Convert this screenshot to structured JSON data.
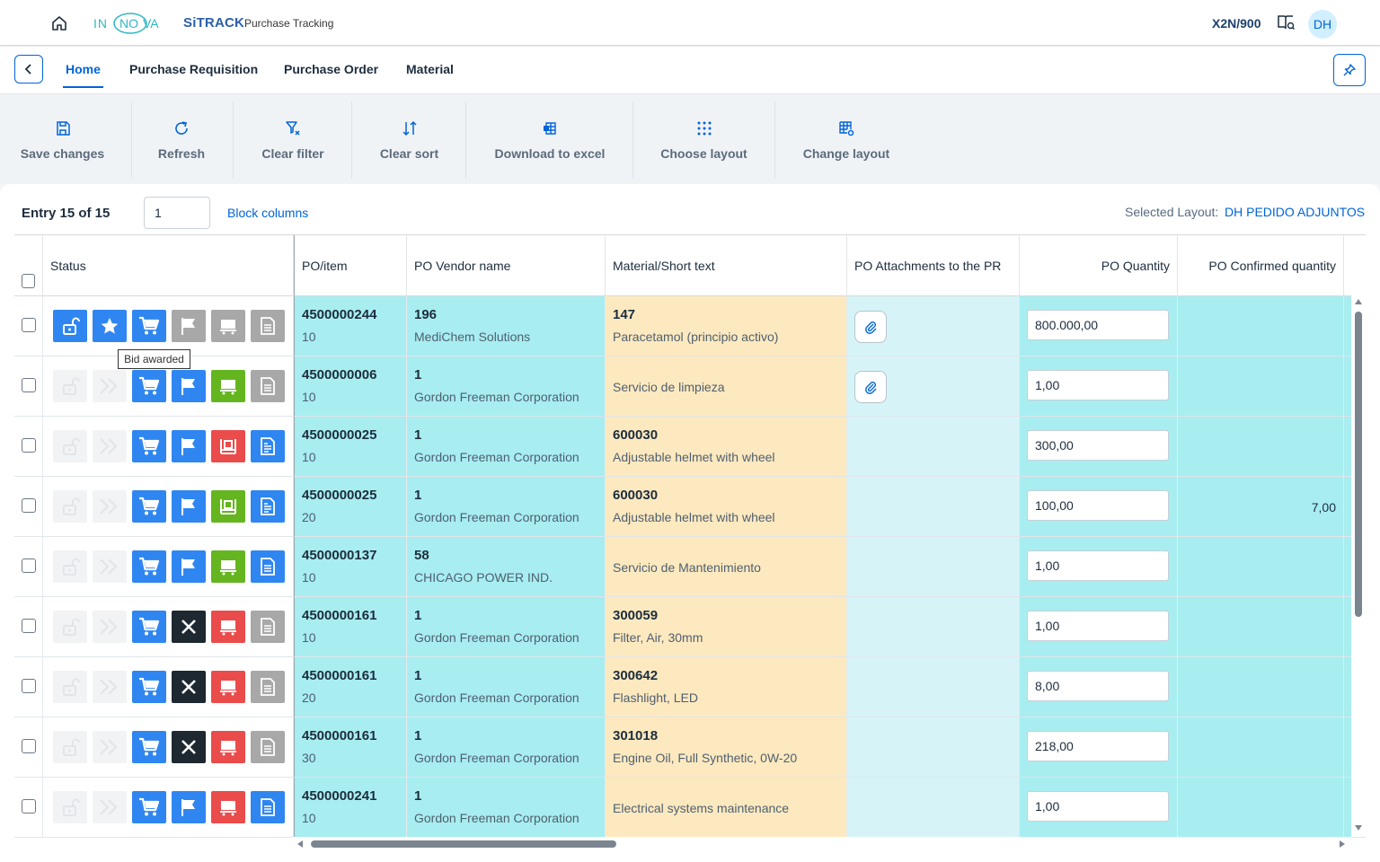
{
  "shell": {
    "app_name": "SiTRACK",
    "app_subtitle": "Purchase Tracking",
    "logo_text": "INNOVA",
    "system": "X2N/900",
    "avatar": "DH",
    "home_icon": "home-icon",
    "help_icon": "help-icon"
  },
  "nav": {
    "tabs": [
      {
        "label": "Home",
        "active": true
      },
      {
        "label": "Purchase Requisition"
      },
      {
        "label": "Purchase Order"
      },
      {
        "label": "Material"
      }
    ],
    "back_icon": "chevron-left-icon",
    "pin_icon": "pin-icon"
  },
  "toolbar": {
    "items": [
      {
        "label": "Save changes",
        "icon": "save-icon"
      },
      {
        "label": "Refresh",
        "icon": "refresh-icon"
      },
      {
        "label": "Clear filter",
        "icon": "clear-filter-icon"
      },
      {
        "label": "Clear sort",
        "icon": "sort-icon"
      },
      {
        "label": "Download to excel",
        "icon": "excel-icon"
      },
      {
        "label": "Choose layout",
        "icon": "grid-dots-icon"
      },
      {
        "label": "Change layout",
        "icon": "table-settings-icon"
      }
    ]
  },
  "panel": {
    "entry_label": "Entry 15 of 15",
    "entry_value": "1",
    "block_columns": "Block columns",
    "selected_layout_label": "Selected Layout:",
    "selected_layout_value": "DH PEDIDO ADJUNTOS"
  },
  "table": {
    "headers": [
      "Status",
      "PO/item",
      "PO Vendor name",
      "Material/Short text",
      "PO Attachments to the PR",
      "PO Quantity",
      "PO Confirmed quantity"
    ],
    "tooltip": "Bid awarded",
    "rows": [
      {
        "po": "4500000244",
        "item": "10",
        "vendor_id": "196",
        "vendor": "MediChem Solutions",
        "mat_id": "147",
        "mat_text": "Paracetamol (principio activo)",
        "attach": true,
        "qty": "800.000,00",
        "confirmed": "",
        "status": [
          "blue:unlock",
          "blue:star",
          "blue:cart",
          "grey:flag",
          "grey:truck",
          "grey:doc"
        ]
      },
      {
        "po": "4500000006",
        "item": "10",
        "vendor_id": "1",
        "vendor": "Gordon Freeman Corporation",
        "mat_id": "",
        "mat_text": "Servicio de limpieza",
        "attach": true,
        "qty": "1,00",
        "confirmed": "",
        "status": [
          "ghost:unlock",
          "ghost:forward",
          "blue:cart",
          "blue:flag",
          "green:truck",
          "grey:doc"
        ]
      },
      {
        "po": "4500000025",
        "item": "10",
        "vendor_id": "1",
        "vendor": "Gordon Freeman Corporation",
        "mat_id": "600030",
        "mat_text": "Adjustable helmet with wheel",
        "attach": false,
        "qty": "300,00",
        "confirmed": "",
        "status": [
          "ghost:unlock",
          "ghost:forward",
          "blue:cart",
          "blue:flag",
          "red:dock",
          "blue:invoice"
        ]
      },
      {
        "po": "4500000025",
        "item": "20",
        "vendor_id": "1",
        "vendor": "Gordon Freeman Corporation",
        "mat_id": "600030",
        "mat_text": "Adjustable helmet with wheel",
        "attach": false,
        "qty": "100,00",
        "confirmed": "7,00",
        "status": [
          "ghost:unlock",
          "ghost:forward",
          "blue:cart",
          "blue:flag",
          "green:dock",
          "blue:invoice"
        ]
      },
      {
        "po": "4500000137",
        "item": "10",
        "vendor_id": "58",
        "vendor": "CHICAGO POWER IND.",
        "mat_id": "",
        "mat_text": "Servicio de Mantenimiento",
        "attach": false,
        "qty": "1,00",
        "confirmed": "",
        "status": [
          "ghost:unlock",
          "ghost:forward",
          "blue:cart",
          "blue:flag",
          "green:truck",
          "blue:doc"
        ]
      },
      {
        "po": "4500000161",
        "item": "10",
        "vendor_id": "1",
        "vendor": "Gordon Freeman Corporation",
        "mat_id": "300059",
        "mat_text": "Filter, Air, 30mm",
        "attach": false,
        "qty": "1,00",
        "confirmed": "",
        "status": [
          "ghost:unlock",
          "ghost:forward",
          "blue:cart",
          "black:x",
          "red:truck",
          "grey:doc"
        ]
      },
      {
        "po": "4500000161",
        "item": "20",
        "vendor_id": "1",
        "vendor": "Gordon Freeman Corporation",
        "mat_id": "300642",
        "mat_text": "Flashlight, LED",
        "attach": false,
        "qty": "8,00",
        "confirmed": "",
        "status": [
          "ghost:unlock",
          "ghost:forward",
          "blue:cart",
          "black:x",
          "red:truck",
          "grey:doc"
        ]
      },
      {
        "po": "4500000161",
        "item": "30",
        "vendor_id": "1",
        "vendor": "Gordon Freeman Corporation",
        "mat_id": "301018",
        "mat_text": "Engine Oil, Full Synthetic, 0W-20",
        "attach": false,
        "qty": "218,00",
        "confirmed": "",
        "status": [
          "ghost:unlock",
          "ghost:forward",
          "blue:cart",
          "black:x",
          "red:truck",
          "grey:doc"
        ]
      },
      {
        "po": "4500000241",
        "item": "10",
        "vendor_id": "1",
        "vendor": "Gordon Freeman Corporation",
        "mat_id": "",
        "mat_text": "Electrical systems maintenance",
        "attach": false,
        "qty": "1,00",
        "confirmed": "",
        "status": [
          "ghost:unlock",
          "ghost:forward",
          "blue:cart",
          "blue:flag",
          "red:truck",
          "blue:doc"
        ]
      }
    ]
  },
  "colors": {
    "accent": "#0064d9",
    "cyan_cell": "#a8edf0",
    "orange_cell": "#fde9bf",
    "status_blue": "#2f86f0",
    "status_green": "#64b51f",
    "status_red": "#ea4b4b"
  }
}
